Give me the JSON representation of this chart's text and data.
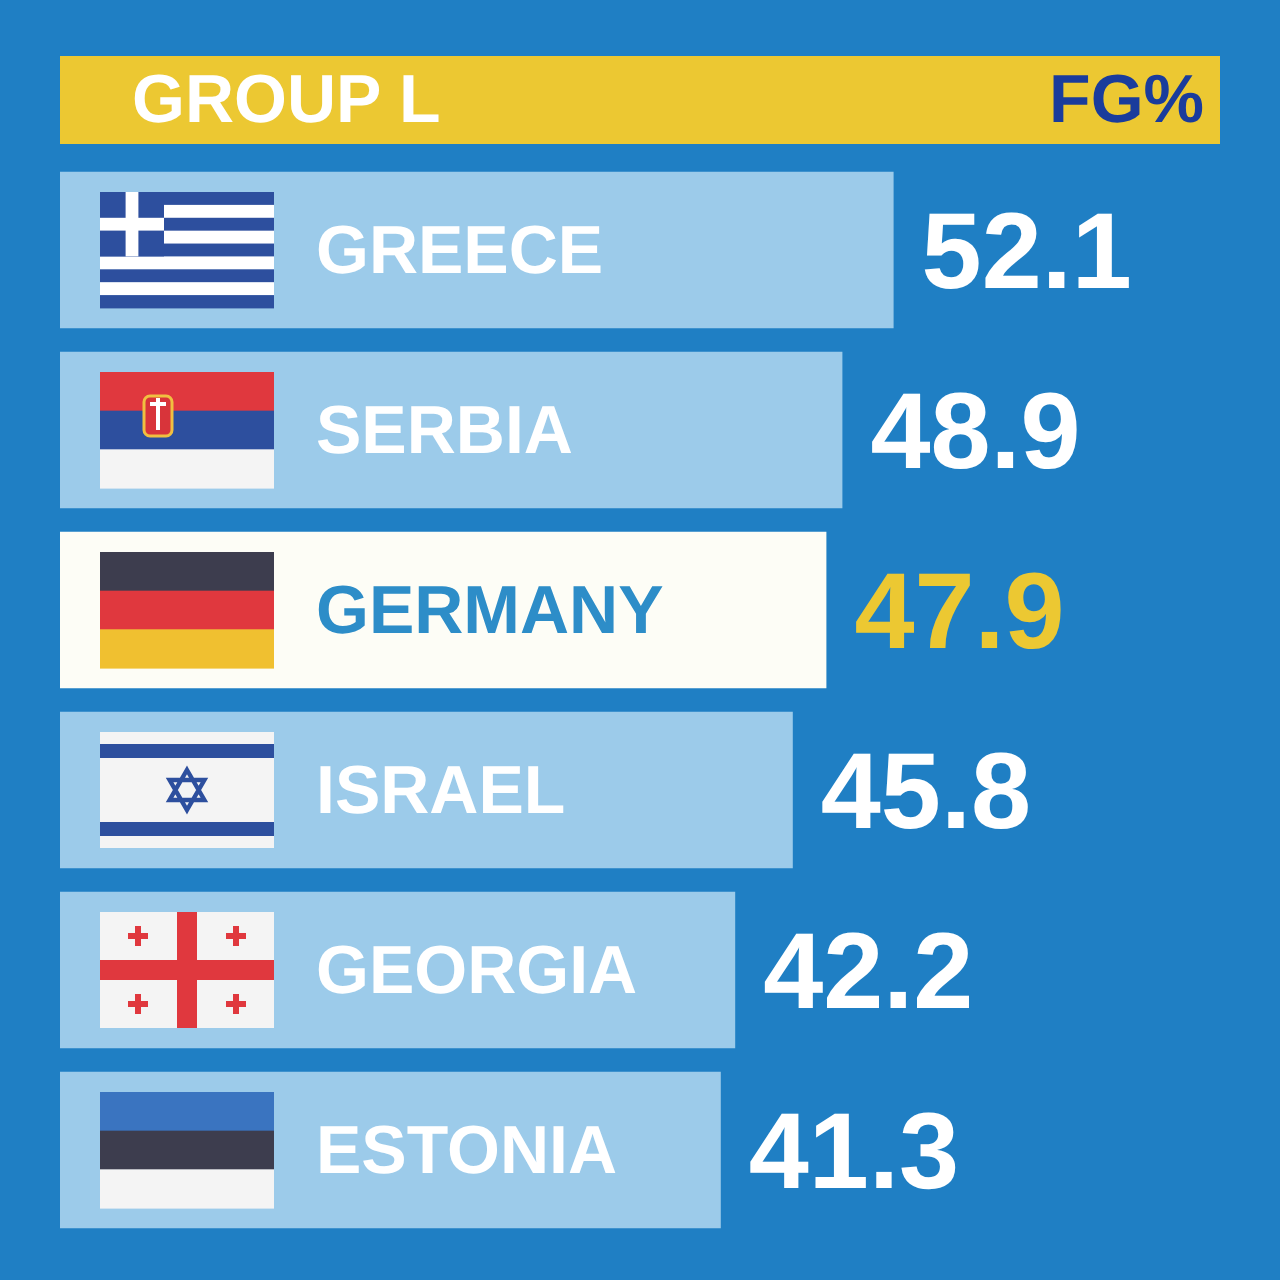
{
  "chart_data": {
    "type": "bar",
    "orientation": "horizontal",
    "title": "GROUP L",
    "xlabel": "FG%",
    "categories": [
      "GREECE",
      "SERBIA",
      "GERMANY",
      "ISRAEL",
      "GEORGIA",
      "ESTONIA"
    ],
    "values": [
      52.1,
      48.9,
      47.9,
      45.8,
      42.2,
      41.3
    ],
    "colors": [
      "#9ccbea",
      "#9ccbea",
      "#fdfdf6",
      "#9ccbea",
      "#9ccbea",
      "#9ccbea"
    ],
    "data_labels": true
  }
}
